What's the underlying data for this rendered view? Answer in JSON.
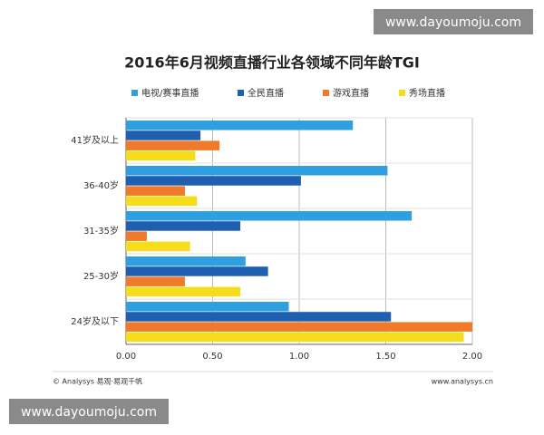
{
  "chart_data": {
    "type": "bar",
    "orientation": "horizontal",
    "title": "2016年6月视频直播行业各领域不同年龄TGI",
    "categories": [
      "41岁及以上",
      "36-40岁",
      "31-35岁",
      "25-30岁",
      "24岁及以下"
    ],
    "series": [
      {
        "name": "电视/赛事直播",
        "color": "#2e9fe0",
        "values": [
          1.31,
          1.51,
          1.65,
          0.69,
          0.94
        ]
      },
      {
        "name": "全民直播",
        "color": "#1f5fb0",
        "values": [
          0.43,
          1.01,
          0.66,
          0.82,
          1.53
        ]
      },
      {
        "name": "游戏直播",
        "color": "#f07a2a",
        "values": [
          0.54,
          0.34,
          0.12,
          0.34,
          2.0
        ]
      },
      {
        "name": "秀场直播",
        "color": "#f5dd1a",
        "values": [
          0.4,
          0.41,
          0.37,
          0.66,
          1.95
        ]
      }
    ],
    "xlim": [
      0,
      2
    ],
    "xticks": [
      {
        "value": 0,
        "label": "0.00"
      },
      {
        "value": 0.5,
        "label": "0.50"
      },
      {
        "value": 1,
        "label": "1.00"
      },
      {
        "value": 1.5,
        "label": "1.50"
      },
      {
        "value": 2,
        "label": "2.00"
      }
    ],
    "grid": true,
    "legend": "top",
    "source": "© Analysys 易观·易观千帆",
    "site": "www.analysys.cn"
  },
  "watermarks": [
    "www.dayoumoju.com",
    "www.dayoumoju.com"
  ]
}
